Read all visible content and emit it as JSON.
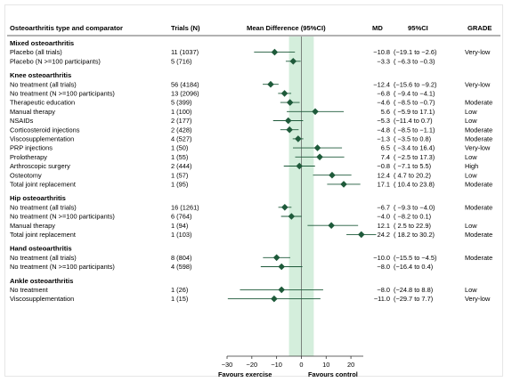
{
  "header": {
    "col_type": "Osteoarthritis type and comparator",
    "col_trials": "Trials (N)",
    "col_md_ci": "Mean Difference (95%CI)",
    "col_md": "MD",
    "col_ci": "95%CI",
    "col_grade": "GRADE"
  },
  "footer": {
    "left": "Favours exercise",
    "right": "Favours control"
  },
  "chart_data": {
    "type": "forest",
    "xlim": [
      -30,
      25
    ],
    "xticks": [
      -30,
      -20,
      -10,
      0,
      10,
      20
    ],
    "shaded_region": [
      -5,
      5
    ],
    "reference_line": 0,
    "colors": {
      "marker": "#1e5a3a",
      "shade": "#d4eedc",
      "line": "#1e5a3a"
    },
    "groups": [
      {
        "title": "Mixed osteoarthritis",
        "rows": [
          {
            "label": "Placebo (all trials)",
            "trials": "11 (1037)",
            "md": -10.8,
            "lo": -19.1,
            "hi": -2.6,
            "md_text": "−10.8",
            "ci_text": "(−19.1 to −2.6)",
            "grade": "Very-low"
          },
          {
            "label": "Placebo (N >=100 participants)",
            "trials": "5 (716)",
            "md": -3.3,
            "lo": -6.3,
            "hi": -0.3,
            "md_text": "−3.3",
            "ci_text": "( −6.3 to −0.3)",
            "grade": ""
          }
        ]
      },
      {
        "title": "Knee osteoarthritis",
        "rows": [
          {
            "label": "No treatment (all trials)",
            "trials": "56 (4184)",
            "md": -12.4,
            "lo": -15.6,
            "hi": -9.2,
            "md_text": "−12.4",
            "ci_text": "(−15.6 to −9.2)",
            "grade": "Very-low"
          },
          {
            "label": "No treatment (N >=100 participants)",
            "trials": "13 (2096)",
            "md": -6.8,
            "lo": -9.4,
            "hi": -4.1,
            "md_text": "−6.8",
            "ci_text": "( −9.4 to −4.1)",
            "grade": ""
          },
          {
            "label": "Therapeutic education",
            "trials": "5 (399)",
            "md": -4.6,
            "lo": -8.5,
            "hi": -0.7,
            "md_text": "−4.6",
            "ci_text": "( −8.5 to −0.7)",
            "grade": "Moderate"
          },
          {
            "label": "Manual therapy",
            "trials": "1 (100)",
            "md": 5.6,
            "lo": -5.9,
            "hi": 17.1,
            "md_text": "5.6",
            "ci_text": "( −5.9 to 17.1)",
            "grade": "Low"
          },
          {
            "label": "NSAIDs",
            "trials": "2 (177)",
            "md": -5.3,
            "lo": -11.4,
            "hi": 0.7,
            "md_text": "−5.3",
            "ci_text": "(−11.4 to 0.7)",
            "grade": "Low"
          },
          {
            "label": "Corticosteroid injections",
            "trials": "2 (428)",
            "md": -4.8,
            "lo": -8.5,
            "hi": -1.1,
            "md_text": "−4.8",
            "ci_text": "( −8.5 to −1.1)",
            "grade": "Moderate"
          },
          {
            "label": "Viscosupplementation",
            "trials": "4 (527)",
            "md": -1.3,
            "lo": -3.5,
            "hi": 0.8,
            "md_text": "−1.3",
            "ci_text": "( −3.5 to 0.8)",
            "grade": "Moderate"
          },
          {
            "label": "PRP injections",
            "trials": "1 (50)",
            "md": 6.5,
            "lo": -3.4,
            "hi": 16.4,
            "md_text": "6.5",
            "ci_text": "( −3.4 to 16.4)",
            "grade": "Very-low"
          },
          {
            "label": "Prolotherapy",
            "trials": "1 (55)",
            "md": 7.4,
            "lo": -2.5,
            "hi": 17.3,
            "md_text": "7.4",
            "ci_text": "( −2.5 to 17.3)",
            "grade": "Low"
          },
          {
            "label": "Arthroscopic surgery",
            "trials": "2 (444)",
            "md": -0.8,
            "lo": -7.1,
            "hi": 5.5,
            "md_text": "−0.8",
            "ci_text": "( −7.1 to 5.5)",
            "grade": "High"
          },
          {
            "label": "Osteotomy",
            "trials": "1 (57)",
            "md": 12.4,
            "lo": 4.7,
            "hi": 20.2,
            "md_text": "12.4",
            "ci_text": "( 4.7 to 20.2)",
            "grade": "Low"
          },
          {
            "label": "Total joint replacement",
            "trials": "1 (95)",
            "md": 17.1,
            "lo": 10.4,
            "hi": 23.8,
            "md_text": "17.1",
            "ci_text": "( 10.4 to 23.8)",
            "grade": "Moderate"
          }
        ]
      },
      {
        "title": "Hip osteoarthritis",
        "rows": [
          {
            "label": "No treatment (all trials)",
            "trials": "16 (1261)",
            "md": -6.7,
            "lo": -9.3,
            "hi": -4.0,
            "md_text": "−6.7",
            "ci_text": "( −9.3 to −4.0)",
            "grade": "Moderate"
          },
          {
            "label": "No treatment (N >=100 participants)",
            "trials": "6 (764)",
            "md": -4.0,
            "lo": -8.2,
            "hi": 0.1,
            "md_text": "−4.0",
            "ci_text": "( −8.2 to 0.1)",
            "grade": ""
          },
          {
            "label": "Manual therapy",
            "trials": "1 (94)",
            "md": 12.1,
            "lo": 2.5,
            "hi": 22.9,
            "md_text": "12.1",
            "ci_text": "( 2.5 to 22.9)",
            "grade": "Low"
          },
          {
            "label": "Total joint replacement",
            "trials": "1 (103)",
            "md": 24.2,
            "lo": 18.2,
            "hi": 30.2,
            "md_text": "24.2",
            "ci_text": "( 18.2 to 30.2)",
            "grade": "Moderate"
          }
        ]
      },
      {
        "title": "Hand osteoarthritis",
        "rows": [
          {
            "label": "No treatment (all trials)",
            "trials": "8 (804)",
            "md": -10.0,
            "lo": -15.5,
            "hi": -4.5,
            "md_text": "−10.0",
            "ci_text": "(−15.5 to −4.5)",
            "grade": "Moderate"
          },
          {
            "label": "No treatment (N >=100 participants)",
            "trials": "4 (598)",
            "md": -8.0,
            "lo": -16.4,
            "hi": 0.4,
            "md_text": "−8.0",
            "ci_text": "(−16.4 to 0.4)",
            "grade": ""
          }
        ]
      },
      {
        "title": "Ankle osteoarthritis",
        "rows": [
          {
            "label": "No treatment",
            "trials": "1 (26)",
            "md": -8.0,
            "lo": -24.8,
            "hi": 8.8,
            "md_text": "−8.0",
            "ci_text": "(−24.8 to 8.8)",
            "grade": "Low"
          },
          {
            "label": "Viscosupplementation",
            "trials": "1 (15)",
            "md": -11.0,
            "lo": -29.7,
            "hi": 7.7,
            "md_text": "−11.0",
            "ci_text": "(−29.7 to 7.7)",
            "grade": "Very-low"
          }
        ]
      }
    ]
  }
}
